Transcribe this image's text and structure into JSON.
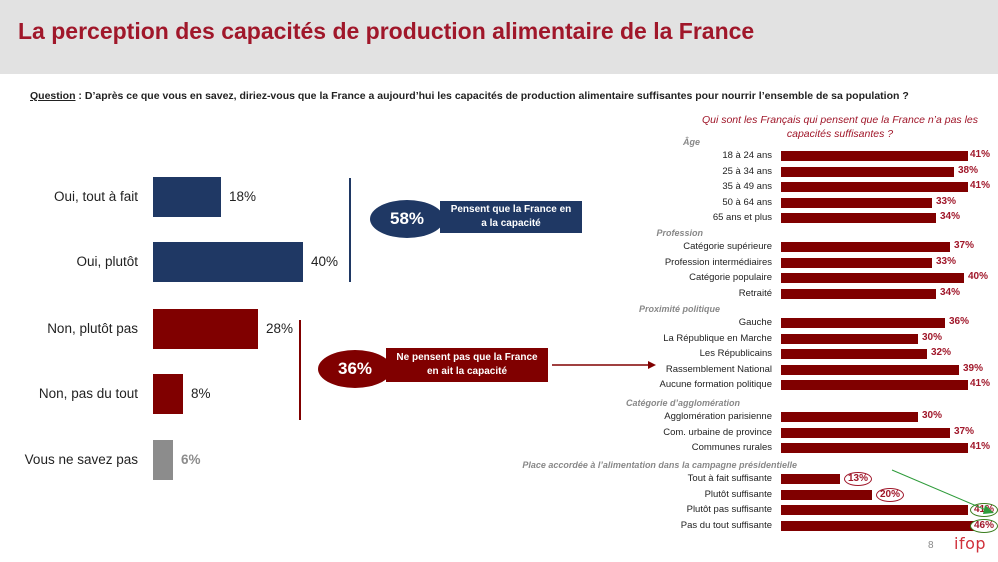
{
  "title": "La perception des capacités de production alimentaire de la France",
  "question": {
    "label": "Question",
    "sep": " :  ",
    "text": "D’après ce que vous en savez, diriez-vous que la France a aujourd’hui les capacités de production alimentaire suffisantes pour nourrir l’ensemble de sa population ?"
  },
  "summary": {
    "yes_pct": "58%",
    "yes_label": "Pensent que la France en a la  capacité",
    "no_pct": "36%",
    "no_label": "Ne pensent pas que la France en ait la  capacité"
  },
  "colors": {
    "blue": "#1f3864",
    "red": "#800000",
    "grey": "#8c8c8c",
    "accent": "#a0172a",
    "green": "#3a7d1e"
  },
  "chart_data": [
    {
      "type": "bar",
      "orientation": "horizontal",
      "categories": [
        "Oui, tout à fait",
        "Oui, plutôt",
        "Non, plutôt pas",
        "Non, pas du tout",
        "Vous ne savez pas"
      ],
      "values": [
        18,
        40,
        28,
        8,
        6
      ],
      "labels": [
        "18%",
        "40%",
        "28%",
        "8%",
        "6%"
      ],
      "colors": [
        "#1f3864",
        "#1f3864",
        "#800000",
        "#800000",
        "#8c8c8c"
      ],
      "xlim": [
        0,
        40
      ]
    },
    {
      "type": "bar",
      "orientation": "horizontal",
      "title": "Qui sont les Français qui pensent que la France n’a pas les capacités suffisantes ?",
      "xlim": [
        0,
        46
      ],
      "groups": [
        {
          "name": "Âge",
          "items": [
            {
              "label": "18 à 24 ans",
              "value": 41,
              "text": "41%"
            },
            {
              "label": "25 à 34 ans",
              "value": 38,
              "text": "38%"
            },
            {
              "label": "35 à 49 ans",
              "value": 41,
              "text": "41%"
            },
            {
              "label": "50 à 64 ans",
              "value": 33,
              "text": "33%"
            },
            {
              "label": "65 ans et plus",
              "value": 34,
              "text": "34%"
            }
          ]
        },
        {
          "name": "Profession",
          "items": [
            {
              "label": "Catégorie supérieure",
              "value": 37,
              "text": "37%"
            },
            {
              "label": "Profession intermédiaires",
              "value": 33,
              "text": "33%"
            },
            {
              "label": "Catégorie populaire",
              "value": 40,
              "text": "40%"
            },
            {
              "label": "Retraité",
              "value": 34,
              "text": "34%"
            }
          ]
        },
        {
          "name": "Proximité politique",
          "items": [
            {
              "label": "Gauche",
              "value": 36,
              "text": "36%"
            },
            {
              "label": "La République en Marche",
              "value": 30,
              "text": "30%"
            },
            {
              "label": "Les Républicains",
              "value": 32,
              "text": "32%"
            },
            {
              "label": "Rassemblement National",
              "value": 39,
              "text": "39%"
            },
            {
              "label": "Aucune formation politique",
              "value": 41,
              "text": "41%"
            }
          ]
        },
        {
          "name": "Catégorie d’agglomération",
          "items": [
            {
              "label": "Agglomération parisienne",
              "value": 30,
              "text": "30%"
            },
            {
              "label": "Com. urbaine de province",
              "value": 37,
              "text": "37%"
            },
            {
              "label": "Communes rurales",
              "value": 41,
              "text": "41%"
            }
          ]
        },
        {
          "name": "Place accordée à l’alimentation dans la campagne présidentielle",
          "items": [
            {
              "label": "Tout à fait suffisante",
              "value": 13,
              "text": "13%",
              "circled": "red"
            },
            {
              "label": "Plutôt suffisante",
              "value": 20,
              "text": "20%",
              "circled": "red"
            },
            {
              "label": "Plutôt pas suffisante",
              "value": 41,
              "text": "41%",
              "circled": "green"
            },
            {
              "label": "Pas du tout suffisante",
              "value": 46,
              "text": "46%",
              "circled": "green"
            }
          ]
        }
      ]
    }
  ],
  "footer": {
    "page": "8",
    "logo": "ifop"
  }
}
